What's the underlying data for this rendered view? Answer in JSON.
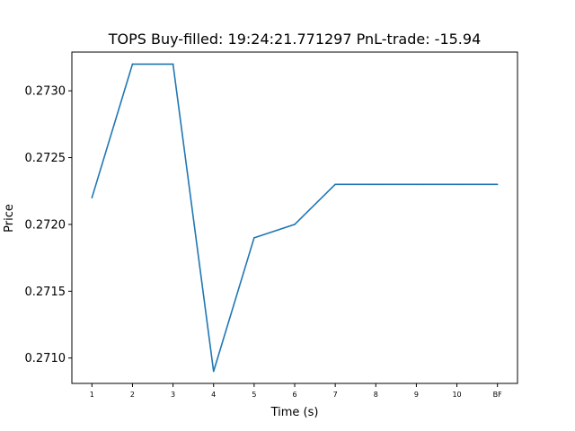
{
  "chart_data": {
    "type": "line",
    "title": "TOPS  Buy-filled:  19:24:21.771297  PnL-trade:  -15.94",
    "xlabel": "Time (s)",
    "ylabel": "Price",
    "categories": [
      "1",
      "2",
      "3",
      "4",
      "5",
      "6",
      "7",
      "8",
      "9",
      "10",
      "BF"
    ],
    "series": [
      {
        "values": [
          0.2722,
          0.2732,
          0.2732,
          0.2709,
          0.2719,
          0.272,
          0.2723,
          0.2723,
          0.2723,
          0.2723,
          0.2723
        ]
      }
    ],
    "ylim": [
      0.27081,
      0.27329
    ],
    "yticks": [
      "0.2710",
      "0.2715",
      "0.2720",
      "0.2725",
      "0.2730"
    ],
    "ytick_values": [
      0.271,
      0.2715,
      0.272,
      0.2725,
      0.273
    ],
    "grid": false,
    "line_color": "#1f77b4"
  }
}
